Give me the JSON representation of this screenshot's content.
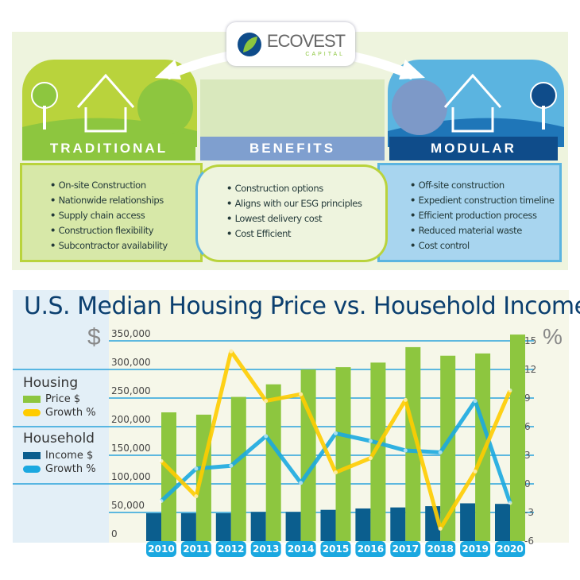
{
  "brand": {
    "name": "ECOVEST",
    "sub": "CAPITAL"
  },
  "sections": {
    "traditional": {
      "title": "TRADITIONAL",
      "items": [
        "On-site Construction",
        "Nationwide relationships",
        "Supply chain access",
        "Construction flexibility",
        "Subcontractor availability"
      ]
    },
    "benefits": {
      "title": "BENEFITS",
      "items": [
        "Construction options",
        "Aligns with our ESG principles",
        "Lowest delivery cost",
        "Cost Efficient"
      ]
    },
    "modular": {
      "title": "MODULAR",
      "items": [
        "Off-site construction",
        "Expedient construction timeline",
        "Efficient production process",
        "Reduced material waste",
        "Cost control"
      ]
    }
  },
  "colors": {
    "traditional": "#8dc63f",
    "benefits": "#7f9fcf",
    "modular": "#0f4c8a",
    "housing_price": "#8dc63f",
    "housing_growth": "#ffcc00",
    "income": "#0b5e8e",
    "income_growth": "#1ba8e0",
    "grid": "#2aa4dc"
  },
  "chart_data": {
    "type": "bar+line",
    "title": "U.S. Median Housing Price vs. Household Income",
    "left_axis": {
      "unit": "$",
      "range": [
        0,
        350000
      ],
      "ticks": [
        "0",
        "50,000",
        "100,000",
        "150,000",
        "200,000",
        "250,000",
        "300,000",
        "350,000"
      ]
    },
    "right_axis": {
      "unit": "%",
      "range": [
        -6,
        15
      ],
      "ticks": [
        "-6",
        "-3",
        "0",
        "3",
        "6",
        "9",
        "12",
        "15"
      ]
    },
    "categories": [
      "2010",
      "2011",
      "2012",
      "2013",
      "2014",
      "2015",
      "2016",
      "2017",
      "2018",
      "2019",
      "2020"
    ],
    "legend": {
      "housing": "Housing",
      "household": "Household"
    },
    "grid": true,
    "legend_position": "left",
    "series": [
      {
        "name": "Price $",
        "group": "Housing",
        "type": "bar",
        "axis": "left",
        "values": [
          225000,
          221000,
          252000,
          274000,
          300000,
          304000,
          312000,
          339000,
          324000,
          328000,
          361000
        ]
      },
      {
        "name": "Growth %",
        "group": "Housing",
        "type": "line",
        "axis": "right",
        "values": [
          2.4,
          -1.3,
          13.9,
          8.7,
          9.4,
          1.2,
          2.7,
          8.8,
          -4.7,
          1.3,
          9.8
        ]
      },
      {
        "name": "Income  $",
        "group": "Household",
        "type": "bar",
        "axis": "left",
        "values": [
          48600,
          48600,
          48600,
          51000,
          51000,
          54600,
          57000,
          58800,
          61000,
          66000,
          65000
        ]
      },
      {
        "name": "Growth %",
        "group": "Household",
        "type": "line",
        "axis": "right",
        "values": [
          -1.8,
          1.6,
          1.9,
          5.0,
          0.1,
          5.3,
          4.5,
          3.5,
          3.3,
          8.7,
          -2.0
        ]
      }
    ]
  }
}
